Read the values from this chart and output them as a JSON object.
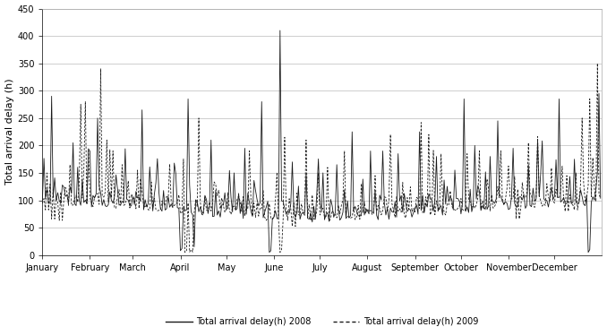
{
  "ylabel": "Total arrival delay (h)",
  "ylim": [
    0,
    450
  ],
  "yticks": [
    0,
    50,
    100,
    150,
    200,
    250,
    300,
    350,
    400,
    450
  ],
  "month_labels": [
    "January",
    "February",
    "March",
    "April",
    "May",
    "June",
    "July",
    "August",
    "September",
    "October",
    "November",
    "December"
  ],
  "month_starts": [
    0,
    31,
    59,
    90,
    120,
    151,
    181,
    212,
    243,
    273,
    304,
    334
  ],
  "legend_2008": "Total arrival delay(h) 2008",
  "legend_2009": "Total arrival delay(h) 2009",
  "color_2008": "#1a1a1a",
  "color_2009": "#1a1a1a",
  "lw_2008": 0.6,
  "lw_2009": 0.6,
  "grid_color": "#bbbbbb",
  "bg_color": "#ffffff",
  "figsize": [
    6.78,
    3.65
  ],
  "dpi": 100,
  "ylabel_fontsize": 8,
  "tick_fontsize": 7,
  "legend_fontsize": 7
}
